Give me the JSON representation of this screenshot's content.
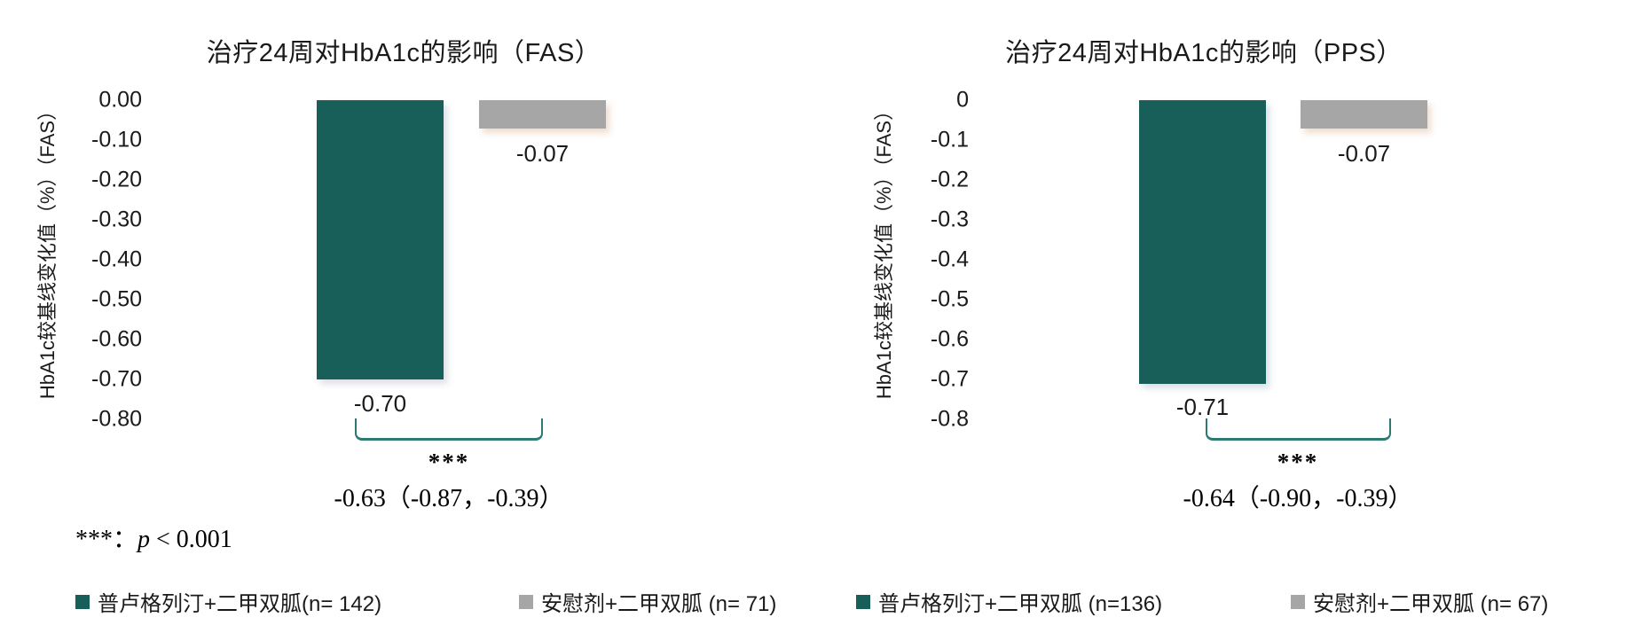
{
  "figure_footnote": {
    "prefix": "***：",
    "p": "p",
    "suffix": " < 0.001"
  },
  "colors": {
    "treatment": "#175F58",
    "placebo": "#A6A6A6",
    "bracket": "#2C7A72",
    "text": "#1a1a1a"
  },
  "chart_data": [
    {
      "type": "bar",
      "title": "治疗24周对HbA1c的影响（FAS）",
      "ylabel": "HbA1c较基线变化值（%）（FAS）",
      "xlabel": "",
      "categories": [
        "普卢格列汀+二甲双胍",
        "安慰剂+二甲双胍"
      ],
      "values": [
        -0.7,
        -0.07
      ],
      "bar_labels": [
        "-0.70",
        "-0.07"
      ],
      "yticks": [
        "0.00",
        "-0.10",
        "-0.20",
        "-0.30",
        "-0.40",
        "-0.50",
        "-0.60",
        "-0.70",
        "-0.80"
      ],
      "ylim": [
        0,
        -0.8
      ],
      "grid": false,
      "legend_position": "bottom",
      "significance": "***",
      "difference": "-0.63（-0.87，-0.39）",
      "legend": [
        "普卢格列汀+二甲双胍(n= 142)",
        "安慰剂+二甲双胍 (n= 71)"
      ]
    },
    {
      "type": "bar",
      "title": "治疗24周对HbA1c的影响（PPS）",
      "ylabel": "HbA1c较基线变化值（%）（FAS）",
      "xlabel": "",
      "categories": [
        "普卢格列汀+二甲双胍",
        "安慰剂+二甲双胍"
      ],
      "values": [
        -0.71,
        -0.07
      ],
      "bar_labels": [
        "-0.71",
        "-0.07"
      ],
      "yticks": [
        "0",
        "-0.1",
        "-0.2",
        "-0.3",
        "-0.4",
        "-0.5",
        "-0.6",
        "-0.7",
        "-0.8"
      ],
      "ylim": [
        0,
        -0.8
      ],
      "grid": false,
      "legend_position": "bottom",
      "significance": "***",
      "difference": "-0.64（-0.90，-0.39）",
      "legend": [
        "普卢格列汀+二甲双胍 (n=136)",
        "安慰剂+二甲双胍 (n= 67)"
      ]
    }
  ]
}
